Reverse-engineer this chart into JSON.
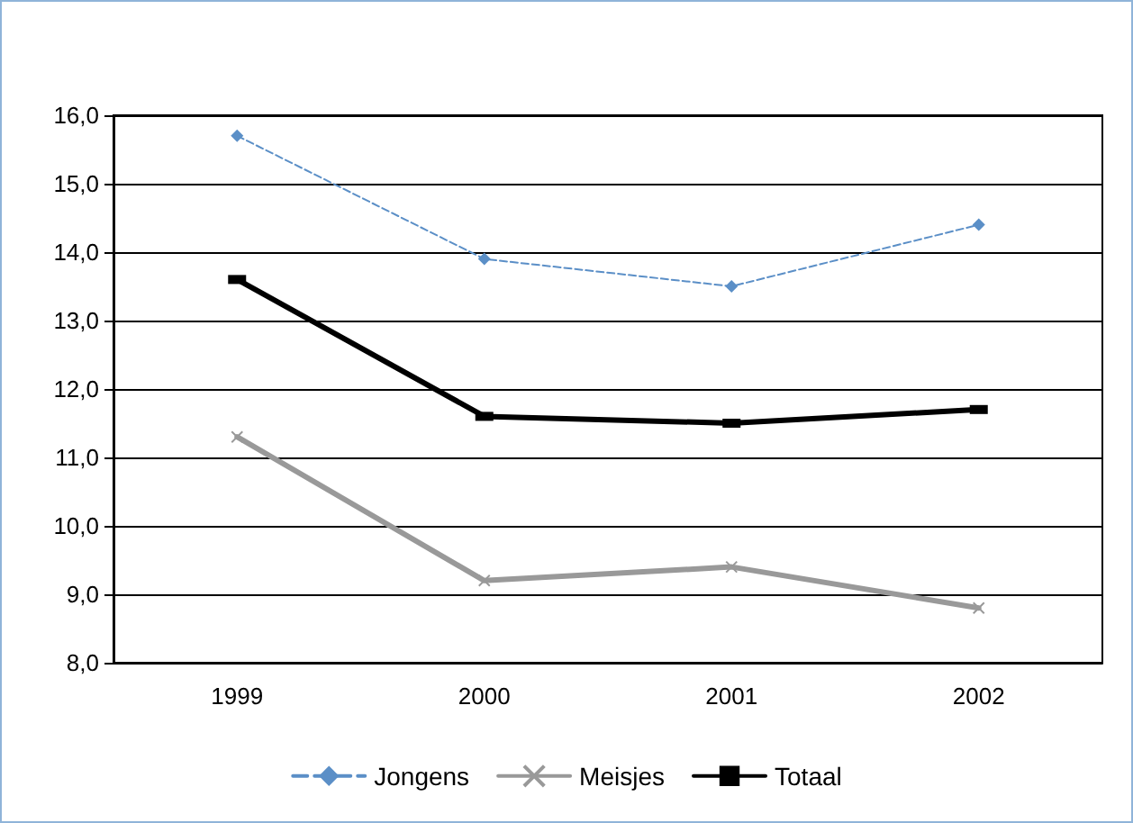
{
  "chart_data": {
    "type": "line",
    "categories": [
      "1999",
      "2000",
      "2001",
      "2002"
    ],
    "series": [
      {
        "name": "Jongens",
        "color": "#5b8fc7",
        "values": [
          15.7,
          13.9,
          13.5,
          14.4
        ],
        "marker": "diamond",
        "line_style": "dashed"
      },
      {
        "name": "Meisjes",
        "color": "#999999",
        "values": [
          11.3,
          9.2,
          9.4,
          8.8
        ],
        "marker": "cross",
        "line_style": "solid"
      },
      {
        "name": "Totaal",
        "color": "#000000",
        "values": [
          13.6,
          11.6,
          11.5,
          11.7
        ],
        "marker": "square",
        "line_style": "solid"
      }
    ],
    "ylim": [
      8,
      16
    ],
    "yticks": [
      {
        "value": 8,
        "label": "8,0"
      },
      {
        "value": 9,
        "label": "9,0"
      },
      {
        "value": 10,
        "label": "10,0"
      },
      {
        "value": 11,
        "label": "11,0"
      },
      {
        "value": 12,
        "label": "12,0"
      },
      {
        "value": 13,
        "label": "13,0"
      },
      {
        "value": 14,
        "label": "14,0"
      },
      {
        "value": 15,
        "label": "15,0"
      },
      {
        "value": 16,
        "label": "16,0"
      }
    ],
    "grid": "y",
    "legend": "bottom"
  }
}
